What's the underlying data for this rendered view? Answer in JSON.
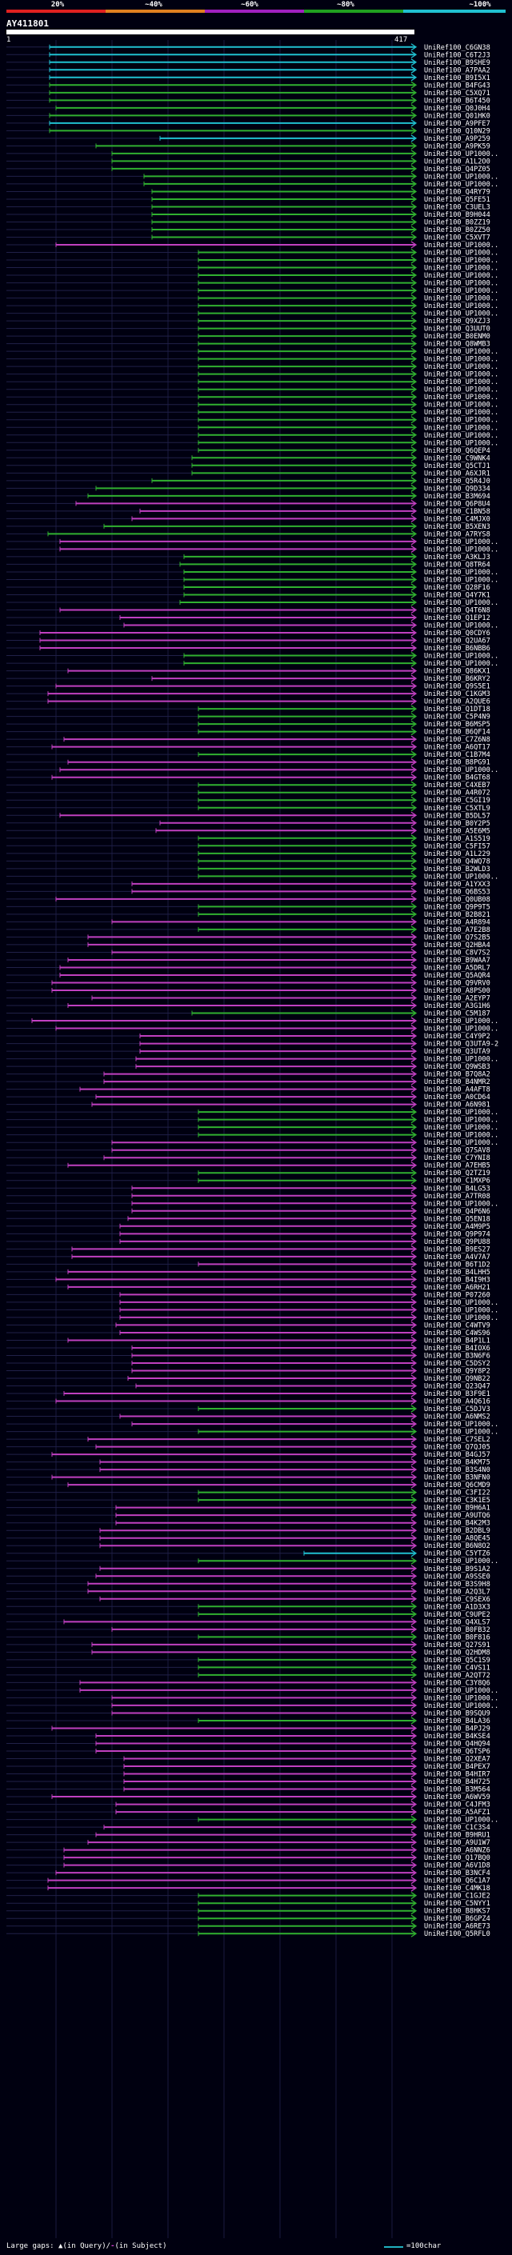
{
  "legend": {
    "labels": [
      "20%",
      "40%",
      "60%",
      "80%",
      "100%"
    ],
    "label_prefix": "~",
    "colors": [
      "#e02020",
      "#e08020",
      "#a020c0",
      "#20a020",
      "#20c0d0"
    ]
  },
  "query": {
    "id": "AY411801",
    "start": "1",
    "end": "417"
  },
  "footer": {
    "gaps_label": "Large gaps:",
    "gap_query": "(in Query)/",
    "gap_subject": "(in Subject)",
    "scale_label": "=100char"
  },
  "hit_colors": {
    "cyan": "#20c0d0",
    "green": "#30b030",
    "purple": "#c040c0"
  },
  "hits": [
    [
      "UniRef100_C6GN38",
      "c",
      62,
      519
    ],
    [
      "UniRef100_C6T2J3",
      "c",
      62,
      519
    ],
    [
      "UniRef100_B9SHE9",
      "c",
      62,
      519
    ],
    [
      "UniRef100_A7PAA2",
      "c",
      62,
      519
    ],
    [
      "UniRef100_B9I5X1",
      "c",
      62,
      519
    ],
    [
      "UniRef100_B4FG43",
      "g",
      62,
      519
    ],
    [
      "UniRef100_C5XQ71",
      "g",
      62,
      519
    ],
    [
      "UniRef100_B6T450",
      "g",
      62,
      519
    ],
    [
      "UniRef100_Q0J0H4",
      "g",
      70,
      519
    ],
    [
      "UniRef100_Q01HK0",
      "g",
      62,
      519
    ],
    [
      "UniRef100_A9PFE7",
      "c",
      62,
      519
    ],
    [
      "UniRef100_Q10N29",
      "g",
      62,
      519
    ],
    [
      "UniRef100_A9P259",
      "c",
      200,
      519
    ],
    [
      "UniRef100_A9PK59",
      "g",
      120,
      519
    ],
    [
      "UniRef100_UP1000..",
      "g",
      140,
      519
    ],
    [
      "UniRef100_A1L2O0",
      "g",
      140,
      519
    ],
    [
      "UniRef100_Q4PZ05",
      "g",
      140,
      519
    ],
    [
      "UniRef100_UP1000..",
      "g",
      180,
      519
    ],
    [
      "UniRef100_UP1000..",
      "g",
      180,
      519
    ],
    [
      "UniRef100_Q4RY79",
      "g",
      190,
      519
    ],
    [
      "UniRef100_Q5FE51",
      "g",
      190,
      519
    ],
    [
      "UniRef100_C3UEL3",
      "g",
      190,
      519
    ],
    [
      "UniRef100_B9H044",
      "g",
      190,
      519
    ],
    [
      "UniRef100_B0ZZ19",
      "g",
      190,
      519
    ],
    [
      "UniRef100_B0ZZ50",
      "g",
      190,
      519
    ],
    [
      "UniRef100_C5XVT7",
      "g",
      190,
      519
    ],
    [
      "UniRef100_UP1000..",
      "p",
      70,
      519
    ],
    [
      "UniRef100_UP1000..",
      "g",
      248,
      519
    ],
    [
      "UniRef100_UP1000..",
      "g",
      248,
      519
    ],
    [
      "UniRef100_UP1000..",
      "g",
      248,
      519
    ],
    [
      "UniRef100_UP1000..",
      "g",
      248,
      519
    ],
    [
      "UniRef100_UP1000..",
      "g",
      248,
      519
    ],
    [
      "UniRef100_UP1000..",
      "g",
      248,
      519
    ],
    [
      "UniRef100_UP1000..",
      "g",
      248,
      519
    ],
    [
      "UniRef100_UP1000..",
      "g",
      248,
      519
    ],
    [
      "UniRef100_UP1000..",
      "g",
      248,
      519
    ],
    [
      "UniRef100_Q9XZJ3",
      "g",
      248,
      519
    ],
    [
      "UniRef100_Q3UUT0",
      "g",
      248,
      519
    ],
    [
      "UniRef100_B0ENM0",
      "g",
      248,
      519
    ],
    [
      "UniRef100_Q8WMB3",
      "g",
      248,
      519
    ],
    [
      "UniRef100_UP1000..",
      "g",
      248,
      519
    ],
    [
      "UniRef100_UP1000..",
      "g",
      248,
      519
    ],
    [
      "UniRef100_UP1000..",
      "g",
      248,
      519
    ],
    [
      "UniRef100_UP1000..",
      "g",
      248,
      519
    ],
    [
      "UniRef100_UP1000..",
      "g",
      248,
      519
    ],
    [
      "UniRef100_UP1000..",
      "g",
      248,
      519
    ],
    [
      "UniRef100_UP1000..",
      "g",
      248,
      519
    ],
    [
      "UniRef100_UP1000..",
      "g",
      248,
      519
    ],
    [
      "UniRef100_UP1000..",
      "g",
      248,
      519
    ],
    [
      "UniRef100_UP1000..",
      "g",
      248,
      519
    ],
    [
      "UniRef100_UP1000..",
      "g",
      248,
      519
    ],
    [
      "UniRef100_UP1000..",
      "g",
      248,
      519
    ],
    [
      "UniRef100_UP1000..",
      "g",
      248,
      519
    ],
    [
      "UniRef100_Q6QEP4",
      "g",
      248,
      519
    ],
    [
      "UniRef100_C9WNK4",
      "g",
      240,
      519
    ],
    [
      "UniRef100_Q5CTJ1",
      "g",
      240,
      519
    ],
    [
      "UniRef100_A6XJR1",
      "g",
      240,
      519
    ],
    [
      "UniRef100_Q5R4J0",
      "g",
      190,
      519
    ],
    [
      "UniRef100_Q9D334",
      "g",
      120,
      519
    ],
    [
      "UniRef100_B3M694",
      "g",
      110,
      519
    ],
    [
      "UniRef100_Q6P8U4",
      "p",
      95,
      519
    ],
    [
      "UniRef100_C1BN58",
      "p",
      175,
      519
    ],
    [
      "UniRef100_C4MJX0",
      "p",
      165,
      519
    ],
    [
      "UniRef100_B5XEN3",
      "g",
      130,
      519
    ],
    [
      "UniRef100_A7RYS8",
      "g",
      60,
      519
    ],
    [
      "UniRef100_UP1000..",
      "p",
      75,
      519
    ],
    [
      "UniRef100_UP1000..",
      "p",
      75,
      519
    ],
    [
      "UniRef100_A3KLJ3",
      "g",
      230,
      519
    ],
    [
      "UniRef100_Q8TR64",
      "g",
      225,
      519
    ],
    [
      "UniRef100_UP1000..",
      "g",
      230,
      519
    ],
    [
      "UniRef100_UP1000..",
      "g",
      230,
      519
    ],
    [
      "UniRef100_Q28F16",
      "g",
      230,
      519
    ],
    [
      "UniRef100_Q4Y7K1",
      "g",
      230,
      519
    ],
    [
      "UniRef100_UP1000..",
      "g",
      225,
      519
    ],
    [
      "UniRef100_Q4T6N8",
      "p",
      75,
      519
    ],
    [
      "UniRef100_Q1EP12",
      "p",
      150,
      519
    ],
    [
      "UniRef100_UP1000..",
      "p",
      155,
      519
    ],
    [
      "UniRef100_Q0CDY6",
      "p",
      50,
      519
    ],
    [
      "UniRef100_Q2UA67",
      "p",
      50,
      519
    ],
    [
      "UniRef100_B6NBB6",
      "p",
      50,
      519
    ],
    [
      "UniRef100_UP1000..",
      "g",
      230,
      519
    ],
    [
      "UniRef100_UP1000..",
      "g",
      230,
      519
    ],
    [
      "UniRef100_Q86KX1",
      "p",
      85,
      519
    ],
    [
      "UniRef100_B6KRY2",
      "p",
      190,
      519
    ],
    [
      "UniRef100_Q9S5E1",
      "p",
      70,
      519
    ],
    [
      "UniRef100_C1KGM3",
      "p",
      60,
      519
    ],
    [
      "UniRef100_A2QUE6",
      "p",
      60,
      519
    ],
    [
      "UniRef100_Q1DT18",
      "g",
      248,
      519
    ],
    [
      "UniRef100_C5P4N9",
      "g",
      248,
      519
    ],
    [
      "UniRef100_B6MSP5",
      "g",
      248,
      519
    ],
    [
      "UniRef100_B6QF14",
      "g",
      248,
      519
    ],
    [
      "UniRef100_C7Z6N8",
      "p",
      80,
      519
    ],
    [
      "UniRef100_A6QT17",
      "p",
      65,
      519
    ],
    [
      "UniRef100_C1B7M4",
      "g",
      248,
      519
    ],
    [
      "UniRef100_B8PG91",
      "p",
      85,
      519
    ],
    [
      "UniRef100_UP1000..",
      "p",
      75,
      519
    ],
    [
      "UniRef100_B4GT68",
      "p",
      65,
      519
    ],
    [
      "UniRef100_C4XEB7",
      "g",
      248,
      519
    ],
    [
      "UniRef100_A4R072",
      "g",
      248,
      519
    ],
    [
      "UniRef100_C5GI19",
      "g",
      248,
      519
    ],
    [
      "UniRef100_C5XTL9",
      "g",
      248,
      519
    ],
    [
      "UniRef100_B5DL57",
      "p",
      75,
      519
    ],
    [
      "UniRef100_B0Y2P5",
      "p",
      200,
      519
    ],
    [
      "UniRef100_A5E6M5",
      "p",
      195,
      519
    ],
    [
      "UniRef100_A1S519",
      "g",
      248,
      519
    ],
    [
      "UniRef100_C5FI57",
      "g",
      248,
      519
    ],
    [
      "UniRef100_A1L229",
      "g",
      248,
      519
    ],
    [
      "UniRef100_Q4WQ78",
      "g",
      248,
      519
    ],
    [
      "UniRef100_B2WLD3",
      "g",
      248,
      519
    ],
    [
      "UniRef100_UP1000..",
      "g",
      248,
      519
    ],
    [
      "UniRef100_A1YXX3",
      "p",
      165,
      519
    ],
    [
      "UniRef100_Q6BS53",
      "p",
      165,
      519
    ],
    [
      "UniRef100_Q0UB08",
      "p",
      70,
      519
    ],
    [
      "UniRef100_Q9P9T5",
      "g",
      248,
      519
    ],
    [
      "UniRef100_B2B821",
      "g",
      248,
      519
    ],
    [
      "UniRef100_A4R894",
      "p",
      140,
      519
    ],
    [
      "UniRef100_A7E2B8",
      "g",
      248,
      519
    ],
    [
      "UniRef100_Q7S2B5",
      "p",
      110,
      519
    ],
    [
      "UniRef100_Q2HBA4",
      "p",
      110,
      519
    ],
    [
      "UniRef100_C8V7S2",
      "p",
      140,
      519
    ],
    [
      "UniRef100_B9WAA7",
      "p",
      85,
      519
    ],
    [
      "UniRef100_A5DRL7",
      "p",
      75,
      519
    ],
    [
      "UniRef100_Q5AQR4",
      "p",
      75,
      519
    ],
    [
      "UniRef100_Q9VRV0",
      "p",
      65,
      519
    ],
    [
      "UniRef100_A8PS00",
      "p",
      65,
      519
    ],
    [
      "UniRef100_A2EYP7",
      "p",
      115,
      519
    ],
    [
      "UniRef100_A3G1H6",
      "p",
      85,
      519
    ],
    [
      "UniRef100_C5M187",
      "g",
      240,
      519
    ],
    [
      "UniRef100_UP1000..",
      "p",
      40,
      519
    ],
    [
      "UniRef100_UP1000..",
      "p",
      70,
      519
    ],
    [
      "UniRef100_C4Y9P2",
      "p",
      175,
      519
    ],
    [
      "UniRef100_Q3UTA9-2",
      "p",
      175,
      519
    ],
    [
      "UniRef100_Q3UTA9",
      "p",
      175,
      519
    ],
    [
      "UniRef100_UP1000..",
      "p",
      170,
      519
    ],
    [
      "UniRef100_Q9WSB3",
      "p",
      170,
      519
    ],
    [
      "UniRef100_B7Q8A2",
      "p",
      130,
      519
    ],
    [
      "UniRef100_B4NMR2",
      "p",
      130,
      519
    ],
    [
      "UniRef100_A4AFT8",
      "p",
      100,
      519
    ],
    [
      "UniRef100_A0CD64",
      "p",
      120,
      519
    ],
    [
      "UniRef100_A6N981",
      "p",
      115,
      519
    ],
    [
      "UniRef100_UP1000..",
      "g",
      248,
      519
    ],
    [
      "UniRef100_UP1000..",
      "g",
      248,
      519
    ],
    [
      "UniRef100_UP1000..",
      "g",
      248,
      519
    ],
    [
      "UniRef100_UP1000..",
      "g",
      248,
      519
    ],
    [
      "UniRef100_UP1000..",
      "p",
      140,
      519
    ],
    [
      "UniRef100_Q7SAV8",
      "p",
      140,
      519
    ],
    [
      "UniRef100_C7YNI8",
      "p",
      130,
      519
    ],
    [
      "UniRef100_A7EHB5",
      "p",
      85,
      519
    ],
    [
      "UniRef100_Q2TZ19",
      "g",
      248,
      519
    ],
    [
      "UniRef100_C1MXP6",
      "g",
      248,
      519
    ],
    [
      "UniRef100_B4LG53",
      "p",
      165,
      519
    ],
    [
      "UniRef100_A7TR08",
      "p",
      165,
      519
    ],
    [
      "UniRef100_UP1000..",
      "p",
      165,
      519
    ],
    [
      "UniRef100_Q4P6N6",
      "p",
      165,
      519
    ],
    [
      "UniRef100_Q5EN18",
      "p",
      160,
      519
    ],
    [
      "UniRef100_A4M9P5",
      "p",
      150,
      519
    ],
    [
      "UniRef100_Q9P974",
      "p",
      150,
      519
    ],
    [
      "UniRef100_Q9PU88",
      "p",
      150,
      519
    ],
    [
      "UniRef100_B9ES27",
      "p",
      90,
      519
    ],
    [
      "UniRef100_A4V7A7",
      "p",
      90,
      519
    ],
    [
      "UniRef100_B6T1D2",
      "p",
      248,
      519
    ],
    [
      "UniRef100_B4LHH5",
      "p",
      85,
      519
    ],
    [
      "UniRef100_B4I9H3",
      "p",
      70,
      519
    ],
    [
      "UniRef100_A6RH21",
      "p",
      85,
      519
    ],
    [
      "UniRef100_P07260",
      "p",
      150,
      519
    ],
    [
      "UniRef100_UP1000..",
      "p",
      150,
      519
    ],
    [
      "UniRef100_UP1000..",
      "p",
      150,
      519
    ],
    [
      "UniRef100_UP1000..",
      "p",
      150,
      519
    ],
    [
      "UniRef100_C4WTV9",
      "p",
      145,
      519
    ],
    [
      "UniRef100_C4WS96",
      "p",
      150,
      519
    ],
    [
      "UniRef100_B4P1L1",
      "p",
      85,
      519
    ],
    [
      "UniRef100_B4IOX6",
      "p",
      165,
      519
    ],
    [
      "UniRef100_B3N6F6",
      "p",
      165,
      519
    ],
    [
      "UniRef100_C5DSY2",
      "p",
      165,
      519
    ],
    [
      "UniRef100_Q9Y8P2",
      "p",
      165,
      519
    ],
    [
      "UniRef100_Q9NB22",
      "p",
      160,
      519
    ],
    [
      "UniRef100_Q23Q47",
      "p",
      170,
      519
    ],
    [
      "UniRef100_B3F9E1",
      "p",
      80,
      519
    ],
    [
      "UniRef100_A4Q616",
      "p",
      70,
      519
    ],
    [
      "UniRef100_C5DJV3",
      "g",
      248,
      519
    ],
    [
      "UniRef100_A6NMS2",
      "p",
      150,
      519
    ],
    [
      "UniRef100_UP1000..",
      "p",
      165,
      519
    ],
    [
      "UniRef100_UP1000..",
      "g",
      248,
      519
    ],
    [
      "UniRef100_C7SEL2",
      "p",
      110,
      519
    ],
    [
      "UniRef100_Q7QJ05",
      "p",
      120,
      519
    ],
    [
      "UniRef100_B4GJ57",
      "p",
      65,
      519
    ],
    [
      "UniRef100_B4KM75",
      "p",
      125,
      519
    ],
    [
      "UniRef100_B3S4N0",
      "p",
      125,
      519
    ],
    [
      "UniRef100_B3NFN0",
      "p",
      65,
      519
    ],
    [
      "UniRef100_Q6CMD9",
      "p",
      85,
      519
    ],
    [
      "UniRef100_C3FI22",
      "g",
      248,
      519
    ],
    [
      "UniRef100_C3K1E5",
      "g",
      248,
      519
    ],
    [
      "UniRef100_B9H6A1",
      "p",
      145,
      519
    ],
    [
      "UniRef100_A9UTQ6",
      "p",
      145,
      519
    ],
    [
      "UniRef100_B4K2M3",
      "p",
      145,
      519
    ],
    [
      "UniRef100_B2DBL9",
      "p",
      125,
      519
    ],
    [
      "UniRef100_A8QE45",
      "p",
      125,
      519
    ],
    [
      "UniRef100_B6N8O2",
      "p",
      125,
      519
    ],
    [
      "UniRef100_C5YTZ6",
      "c",
      380,
      519
    ],
    [
      "UniRef100_UP1000..",
      "g",
      248,
      519
    ],
    [
      "UniRef100_B9S1A2",
      "p",
      125,
      519
    ],
    [
      "UniRef100_A9SSE0",
      "p",
      120,
      519
    ],
    [
      "UniRef100_B3S9H8",
      "p",
      110,
      519
    ],
    [
      "UniRef100_A2Q3L7",
      "p",
      110,
      519
    ],
    [
      "UniRef100_C9SEX6",
      "p",
      125,
      519
    ],
    [
      "UniRef100_A1D3X3",
      "g",
      248,
      519
    ],
    [
      "UniRef100_C9UPE2",
      "g",
      248,
      519
    ],
    [
      "UniRef100_Q4XLS7",
      "p",
      80,
      519
    ],
    [
      "UniRef100_B0FB32",
      "p",
      140,
      519
    ],
    [
      "UniRef100_B0F816",
      "g",
      248,
      519
    ],
    [
      "UniRef100_Q27S91",
      "p",
      115,
      519
    ],
    [
      "UniRef100_Q2HDM8",
      "p",
      115,
      519
    ],
    [
      "UniRef100_Q5C1S9",
      "g",
      248,
      519
    ],
    [
      "UniRef100_C4VS11",
      "g",
      248,
      519
    ],
    [
      "UniRef100_A2QT72",
      "g",
      248,
      519
    ],
    [
      "UniRef100_C3Y8Q6",
      "p",
      100,
      519
    ],
    [
      "UniRef100_UP1000..",
      "p",
      100,
      519
    ],
    [
      "UniRef100_UP1000..",
      "p",
      140,
      519
    ],
    [
      "UniRef100_UP1000..",
      "p",
      140,
      519
    ],
    [
      "UniRef100_B9SQU9",
      "p",
      140,
      519
    ],
    [
      "UniRef100_B4LA36",
      "g",
      248,
      519
    ],
    [
      "UniRef100_B4PJ29",
      "p",
      65,
      519
    ],
    [
      "UniRef100_B4KSE4",
      "p",
      120,
      519
    ],
    [
      "UniRef100_Q4HQ94",
      "p",
      120,
      519
    ],
    [
      "UniRef100_Q6TSP6",
      "p",
      120,
      519
    ],
    [
      "UniRef100_Q2XEA7",
      "p",
      155,
      519
    ],
    [
      "UniRef100_B4PEX7",
      "p",
      155,
      519
    ],
    [
      "UniRef100_B4HIR7",
      "p",
      155,
      519
    ],
    [
      "UniRef100_B4H725",
      "p",
      155,
      519
    ],
    [
      "UniRef100_B3M564",
      "p",
      155,
      519
    ],
    [
      "UniRef100_A6WV59",
      "p",
      65,
      519
    ],
    [
      "UniRef100_C4JFM3",
      "p",
      145,
      519
    ],
    [
      "UniRef100_A5AFZ1",
      "p",
      145,
      519
    ],
    [
      "UniRef100_UP1000..",
      "g",
      248,
      519
    ],
    [
      "UniRef100_C1C3S4",
      "p",
      130,
      519
    ],
    [
      "UniRef100_B9HRU1",
      "p",
      120,
      519
    ],
    [
      "UniRef100_A9U1W7",
      "p",
      110,
      519
    ],
    [
      "UniRef100_A6NNZ6",
      "p",
      80,
      519
    ],
    [
      "UniRef100_Q17BQ0",
      "p",
      80,
      519
    ],
    [
      "UniRef100_A6V1D8",
      "p",
      80,
      519
    ],
    [
      "UniRef100_B3NCF4",
      "p",
      70,
      519
    ],
    [
      "UniRef100_Q6C1A7",
      "p",
      60,
      519
    ],
    [
      "UniRef100_C4MK18",
      "p",
      60,
      519
    ],
    [
      "UniRef100_C1GJE2",
      "g",
      248,
      519
    ],
    [
      "UniRef100_C5NYY1",
      "g",
      248,
      519
    ],
    [
      "UniRef100_B8HKS7",
      "g",
      248,
      519
    ],
    [
      "UniRef100_B6GPZ4",
      "g",
      248,
      519
    ],
    [
      "UniRef100_A6RE73",
      "g",
      248,
      519
    ],
    [
      "UniRef100_Q5RFL0",
      "g",
      248,
      519
    ]
  ]
}
